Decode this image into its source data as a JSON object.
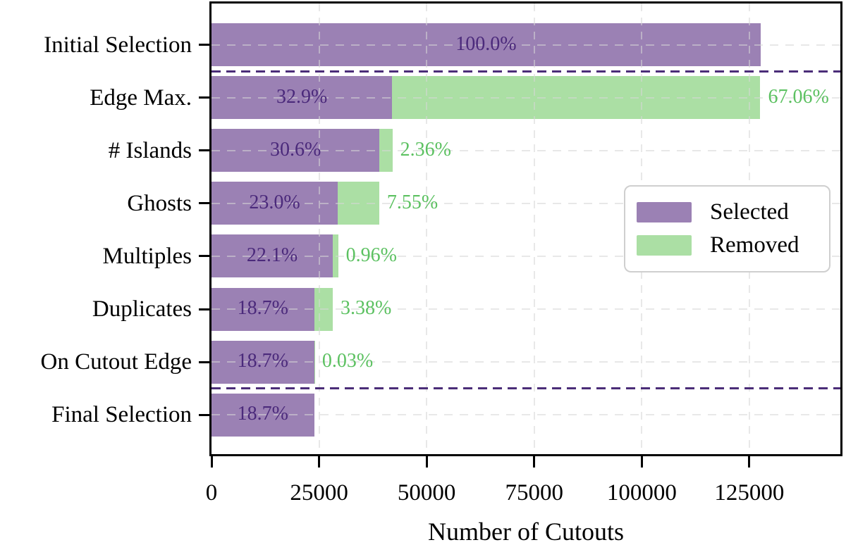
{
  "figure": {
    "background": "#ffffff",
    "axis_color": "#000000"
  },
  "chart_data": {
    "type": "bar",
    "orientation": "horizontal",
    "stacked": true,
    "title": "",
    "xlabel": "Number of Cutouts",
    "ylabel": "",
    "x_tick_labels": [
      "0",
      "25000",
      "50000",
      "75000",
      "100000",
      "125000"
    ],
    "x_tick_values": [
      0,
      25000,
      50000,
      75000,
      100000,
      125000
    ],
    "xlim": [
      0,
      146150
    ],
    "grid": "dashed light gridlines, both axes, drawn over bars",
    "total_cutouts_estimated": 127600,
    "categories": [
      "Initial Selection",
      "Edge Max.",
      "# Islands",
      "Ghosts",
      "Multiples",
      "Duplicates",
      "On Cutout Edge",
      "Final Selection"
    ],
    "series": [
      {
        "name": "Selected",
        "color": "#9b81b4",
        "label_color": "#4b2a7b",
        "values_pct": [
          100.0,
          32.9,
          30.6,
          23.0,
          22.1,
          18.7,
          18.7,
          18.7
        ],
        "labels": [
          "100.0%",
          "32.9%",
          "30.6%",
          "23.0%",
          "22.1%",
          "18.7%",
          "18.7%",
          "18.7%"
        ],
        "counts_estimated": [
          127600,
          41980,
          39046,
          29348,
          28200,
          23861,
          23861,
          23861
        ]
      },
      {
        "name": "Removed",
        "color": "#abdfa4",
        "label_color": "#5cc161",
        "values_pct": [
          null,
          67.06,
          2.36,
          7.55,
          0.96,
          3.38,
          0.03,
          null
        ],
        "labels": [
          null,
          "67.06%",
          "2.36%",
          "7.55%",
          "0.96%",
          "3.38%",
          "0.03%",
          null
        ],
        "counts_estimated": [
          null,
          85568,
          3011,
          9634,
          1225,
          4313,
          38,
          null
        ]
      }
    ],
    "separator_lines": {
      "color": "#4b2d78",
      "style": "dashed",
      "after_categories": [
        "Initial Selection",
        "On Cutout Edge"
      ]
    },
    "legend": {
      "position": "center-right",
      "entries": [
        {
          "label": "Selected",
          "color": "#9b81b4"
        },
        {
          "label": "Removed",
          "color": "#abdfa4"
        }
      ]
    }
  }
}
